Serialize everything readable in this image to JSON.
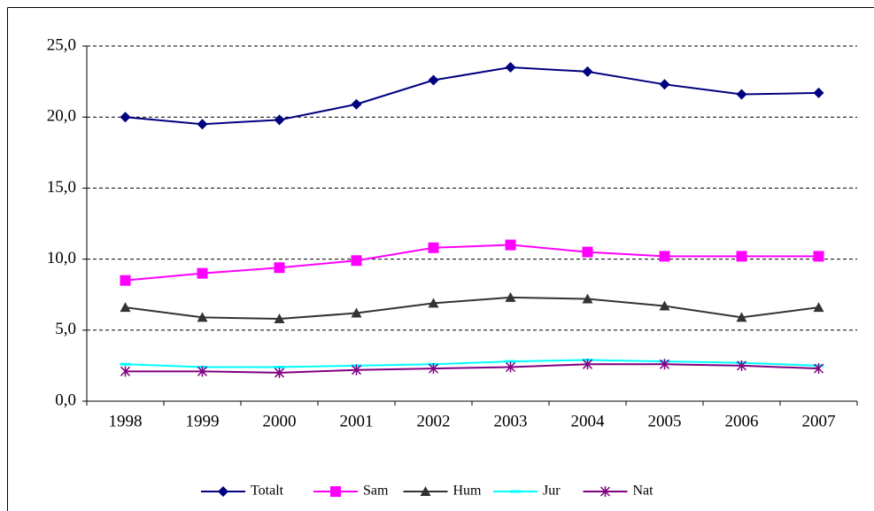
{
  "chart_data": {
    "type": "line",
    "categories": [
      "1998",
      "1999",
      "2000",
      "2001",
      "2002",
      "2003",
      "2004",
      "2005",
      "2006",
      "2007"
    ],
    "series": [
      {
        "name": "Totalt",
        "color": "#000080",
        "marker": "diamond",
        "values": [
          20.0,
          19.5,
          19.8,
          20.9,
          22.6,
          23.5,
          23.2,
          22.3,
          21.6,
          21.7
        ]
      },
      {
        "name": "Sam",
        "color": "#ff00ff",
        "marker": "square",
        "values": [
          8.5,
          9.0,
          9.4,
          9.9,
          10.8,
          11.0,
          10.5,
          10.2,
          10.2,
          10.2
        ]
      },
      {
        "name": "Hum",
        "color": "#333333",
        "marker": "triangle",
        "values": [
          6.6,
          5.9,
          5.8,
          6.2,
          6.9,
          7.3,
          7.2,
          6.7,
          5.9,
          6.6
        ]
      },
      {
        "name": "Jur",
        "color": "#00ffff",
        "marker": "dash",
        "values": [
          2.6,
          2.4,
          2.4,
          2.5,
          2.6,
          2.8,
          2.9,
          2.8,
          2.7,
          2.5
        ]
      },
      {
        "name": "Nat",
        "color": "#800080",
        "marker": "asterisk",
        "values": [
          2.1,
          2.1,
          2.0,
          2.2,
          2.3,
          2.4,
          2.6,
          2.6,
          2.5,
          2.3
        ]
      }
    ],
    "ylim": [
      0,
      25
    ],
    "yticks": [
      {
        "value": 0,
        "label": "0,0"
      },
      {
        "value": 5,
        "label": "5,0"
      },
      {
        "value": 10,
        "label": "10,0"
      },
      {
        "value": 15,
        "label": "15,0"
      },
      {
        "value": 20,
        "label": "20,0"
      },
      {
        "value": 25,
        "label": "25,0"
      }
    ],
    "grid": true,
    "grid_style": "dashed",
    "legend": "bottom"
  }
}
